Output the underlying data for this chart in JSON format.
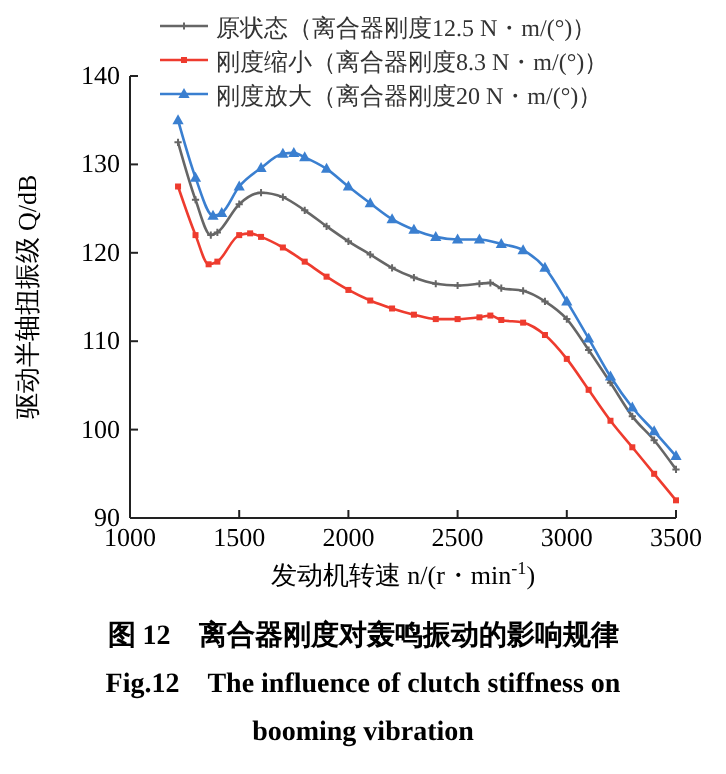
{
  "chart_data": {
    "type": "line",
    "title": "图 12　离合器刚度对轰鸣振动的影响规律",
    "subtitle": "Fig.12　The influence of clutch stiffness on booming vibration",
    "xlabel": "发动机转速 n/(r・min$^{-1}$)",
    "ylabel": "驱动半轴扭振级 Q/dB",
    "xlim": [
      1000,
      3500
    ],
    "xticks": [
      1000,
      1500,
      2000,
      2500,
      3000,
      3500
    ],
    "ylim": [
      90,
      140
    ],
    "yticks": [
      90,
      100,
      110,
      120,
      130,
      140
    ],
    "grid": false,
    "legend": "top",
    "line_style": "solid",
    "series": [
      {
        "name": "原状态（离合器刚度12.5 N・m/(°)）",
        "color": "#666666",
        "marker": "cross",
        "x": [
          1220,
          1300,
          1370,
          1400,
          1500,
          1600,
          1700,
          1800,
          1900,
          2000,
          2100,
          2200,
          2300,
          2400,
          2500,
          2600,
          2650,
          2700,
          2800,
          2900,
          3000,
          3100,
          3200,
          3300,
          3400,
          3500
        ],
        "values": [
          132.5,
          126,
          122,
          122.3,
          125.5,
          126.8,
          126.3,
          124.8,
          123,
          121.3,
          119.8,
          118.3,
          117.2,
          116.5,
          116.3,
          116.5,
          116.6,
          116,
          115.7,
          114.5,
          112.5,
          109,
          105.3,
          101.5,
          98.8,
          95.5
        ]
      },
      {
        "name": "刚度缩小（离合器刚度8.3 N・m/(°)）",
        "color": "#ee3b2e",
        "marker": "square",
        "x": [
          1220,
          1300,
          1360,
          1400,
          1500,
          1550,
          1600,
          1700,
          1800,
          1900,
          2000,
          2100,
          2200,
          2300,
          2400,
          2500,
          2600,
          2650,
          2700,
          2800,
          2900,
          3000,
          3100,
          3200,
          3300,
          3400,
          3500
        ],
        "values": [
          127.5,
          122,
          118.7,
          119,
          122,
          122.2,
          121.8,
          120.6,
          119,
          117.3,
          115.8,
          114.6,
          113.7,
          113,
          112.5,
          112.5,
          112.7,
          112.9,
          112.4,
          112.1,
          110.7,
          108,
          104.5,
          101,
          98,
          95,
          92
        ]
      },
      {
        "name": "刚度放大（离合器刚度20 N・m/(°)）",
        "color": "#3a7fd0",
        "marker": "triangle",
        "x": [
          1220,
          1300,
          1380,
          1420,
          1500,
          1600,
          1700,
          1750,
          1800,
          1900,
          2000,
          2100,
          2200,
          2300,
          2400,
          2500,
          2600,
          2700,
          2800,
          2900,
          3000,
          3100,
          3200,
          3300,
          3400,
          3500
        ],
        "values": [
          135,
          128.5,
          124.2,
          124.5,
          127.5,
          129.6,
          131.2,
          131.3,
          130.8,
          129.5,
          127.5,
          125.6,
          123.8,
          122.6,
          121.8,
          121.5,
          121.5,
          121,
          120.3,
          118.3,
          114.5,
          110.3,
          106,
          102.5,
          99.8,
          97
        ]
      }
    ]
  }
}
